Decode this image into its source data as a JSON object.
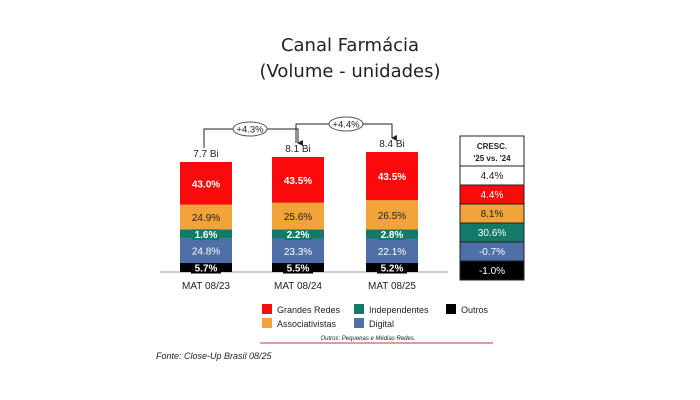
{
  "chart_data": {
    "type": "bar",
    "stacked": true,
    "title": "Canal Farmácia",
    "subtitle": "(Volume - unidades)",
    "categories": [
      "MAT 08/23",
      "MAT 08/24",
      "MAT 08/25"
    ],
    "totals": [
      "7.7 Bi",
      "8.1 Bi",
      "8.4 Bi"
    ],
    "growth_arrows": [
      "+4.3%",
      "+4.4%"
    ],
    "series": [
      {
        "name": "Outros",
        "color": "#000000",
        "values": [
          5.7,
          5.5,
          5.2
        ],
        "labels": [
          "5.7%",
          "5.5%",
          "5.2%"
        ]
      },
      {
        "name": "Digital",
        "color": "#4f6fa7",
        "values": [
          24.8,
          23.3,
          22.1
        ],
        "labels": [
          "24.8%",
          "23.3%",
          "22.1%"
        ]
      },
      {
        "name": "Independentes",
        "color": "#137a6a",
        "values": [
          1.6,
          2.2,
          2.8
        ],
        "labels": [
          "1.6%",
          "2.2%",
          "2.8%"
        ]
      },
      {
        "name": "Associativistas",
        "color": "#f2a33a",
        "values": [
          24.9,
          25.6,
          26.5
        ],
        "labels": [
          "24.9%",
          "25.6%",
          "26.5%"
        ]
      },
      {
        "name": "Grandes Redes",
        "color": "#fa0a0a",
        "values": [
          43.0,
          43.5,
          43.5
        ],
        "labels": [
          "43.0%",
          "43.5%",
          "43.5%"
        ]
      }
    ],
    "legend": [
      {
        "name": "Grandes Redes",
        "color": "#fa0a0a"
      },
      {
        "name": "Independentes",
        "color": "#137a6a"
      },
      {
        "name": "Outros",
        "color": "#000000"
      },
      {
        "name": "Associativistas",
        "color": "#f2a33a"
      },
      {
        "name": "Digital",
        "color": "#4f6fa7"
      }
    ],
    "legend_note": "Outros: Pequenas e Médias Redes.",
    "growth_table": {
      "header": [
        "CRESC.",
        "'25 vs. '24"
      ],
      "rows": [
        {
          "value": "4.4%",
          "color": "#ffffff",
          "text_color": "#222222"
        },
        {
          "value": "4.4%",
          "color": "#fa0a0a",
          "text_color": "#ffffff"
        },
        {
          "value": "8.1%",
          "color": "#f2a33a",
          "text_color": "#222222"
        },
        {
          "value": "30.6%",
          "color": "#137a6a",
          "text_color": "#ffffff"
        },
        {
          "value": "-0.7%",
          "color": "#4f6fa7",
          "text_color": "#ffffff"
        },
        {
          "value": "-1.0%",
          "color": "#000000",
          "text_color": "#ffffff"
        }
      ]
    }
  },
  "source": "Fonte: Close-Up Brasil 08/25"
}
